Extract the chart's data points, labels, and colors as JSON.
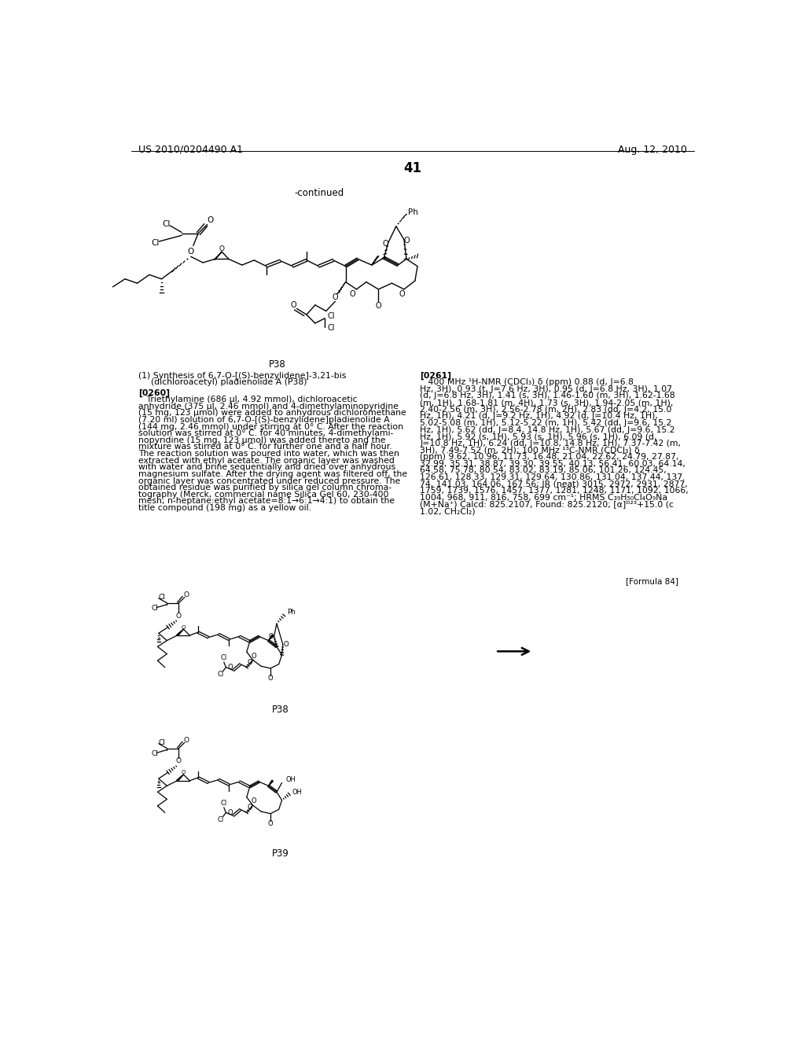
{
  "page_number": "41",
  "header_left": "US 2010/0204490 A1",
  "header_right": "Aug. 12, 2010",
  "continued_label": "-continued",
  "formula_label": "[Formula 84]",
  "section_title_line1": "(1) Synthesis of 6,7-O-[(S)-benzylidene]-3,21-bis",
  "section_title_line2": "(dichloroacetyl) pladienolide A (P38)",
  "p260_label": "[0260]",
  "p260_text": "Triethylamine (686 μl, 4.92 mmol), dichloroacetic anhydride (375 μl, 2.46 mmol) and 4-dimethylaminopyridine (15 mg, 123 μmol) were added to anhydrous dichloromethane (7.20 ml) solution of 6,7-O-[(S)-benzylidene]pladienolide A (144 mg, 2.46 mmol) under stirring at 0° C. After the reaction solution was stirred at 0° C. for 40 minutes, 4-dimethylami- nopyridine (15 mg, 123 μmol) was added thereto and the mixture was stirred at 0° C. for further one and a half hour. The reaction solution was poured into water, which was then extracted with ethyl acetate. The organic layer was washed with water and brine sequentially and dried over anhydrous magnesium sulfate. After the drying agent was filtered off, the organic layer was concentrated under reduced pressure. The obtained residue was purified by silica gel column chroma- tography (Merck, commercial name Silica Gel 60, 230-400 mesh; n-heptane:ethyl acetate=8:1→6:1→4:1) to obtain the title compound (198 mg) as a yellow oil.",
  "p261_label": "[0261]",
  "p261_text": "400 MHz ¹H-NMR (CDCl₃) δ (ppm) 0.88 (d, J=6.8 Hz, 3H), 0.93 (t, J=7.6 Hz, 3H), 0.95 (d, J=6.8 Hz, 3H), 1.07 (d, J=6.8 Hz, 3H), 1.41 (s, 3H), 1.46-1.60 (m, 3H), 1.62-1.68 (m, 1H), 1.68-1.81 (m, 4H), 1.73 (s, 3H), 1.94-2.05 (m, 1H), 2.40-2.56 (m, 3H), 2.56-2.78 (m, 2H), 2.83 (dd, J=4.2, 15.0 Hz, 1H), 4.21 (d, J=9.2 Hz, 1H), 4.92 (d, J=10.4 Hz, 1H), 5.02-5.08 (m, 1H), 5.12-5.22 (m, 1H), 5.42 (dd, J=9.6, 15.2 Hz, 1H), 5.62 (dd, J=8.4, 14.8 Hz, 1H), 5.67 (dd, J=9.6, 15.2 Hz, 1H), 5.92 (s, 1H), 5.93 (s, 1H), 5.96 (s, 1H), 6.09 (d, J=10.8 Hz, 1H), 6.24 (dd, J=10.8, 14.8 Hz, 1H), 7.37-7.42 (m, 3H), 7.49-7.52 (m, 2H); 100 MHz ¹³C-NMR (CDCl₃) δ (ppm) 9.62, 10.96, 11.73, 16.48, 21.04, 22.62, 24.79, 27.87, 32.99, 35.31, 38.87, 39.30, 39.55, 40.13, 56.41, 60.03, 64.14, 64.58, 75.78, 80.54, 83.02, 83.19, 85.06, 101.26, 124.45, 126.61, 128.33, 129.31, 129.64, 130.86, 131.04, 137.44, 137.74, 141.03, 164.06, 167.56; IR (neat) 3015, 2972, 2931, 2877, 1759, 1739, 1576, 1457, 1377, 1281, 1248, 1171, 1092, 1066, 1004, 968, 911, 816, 758, 699 cm⁻¹; HRMS C₃₉H₅₀Cl₄O₉Na (M+Na⁺) Calcd: 825.2107, Found: 825.2120; [α]ᴰ²³+15.0 (c 1.02, CH₂Cl₂)",
  "bg": "#ffffff"
}
